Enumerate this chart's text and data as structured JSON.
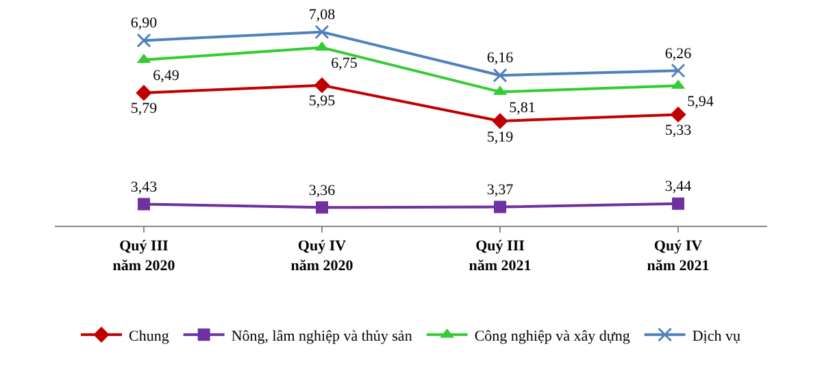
{
  "chart_data": {
    "type": "line",
    "categories": [
      "Quý III\nnăm 2020",
      "Quý IV\nnăm 2020",
      "Quý III\nnăm 2021",
      "Quý IV\nnăm 2021"
    ],
    "series": [
      {
        "name": "Chung",
        "color": "#c00000",
        "marker": "diamond",
        "values": [
          5.79,
          5.95,
          5.19,
          5.33
        ],
        "value_labels": [
          "5,79",
          "5,95",
          "5,19",
          "5,33"
        ]
      },
      {
        "name": "Nông, lâm nghiệp và thủy sản",
        "color": "#7030a0",
        "marker": "square",
        "values": [
          3.43,
          3.36,
          3.37,
          3.44
        ],
        "value_labels": [
          "3,43",
          "3,36",
          "3,37",
          "3,44"
        ]
      },
      {
        "name": "Công nghiệp và xây dựng",
        "color": "#33cc33",
        "marker": "triangle",
        "values": [
          6.49,
          6.75,
          5.81,
          5.94
        ],
        "value_labels": [
          "6,49",
          "6,75",
          "5,81",
          "5,94"
        ]
      },
      {
        "name": "Dịch vụ",
        "color": "#4f81bd",
        "marker": "cross",
        "values": [
          6.9,
          7.08,
          6.16,
          6.26
        ],
        "value_labels": [
          "6,90",
          "7,08",
          "6,16",
          "6,26"
        ]
      }
    ],
    "tick_labels": "x",
    "legend": "bottom",
    "line_style": "solid"
  }
}
